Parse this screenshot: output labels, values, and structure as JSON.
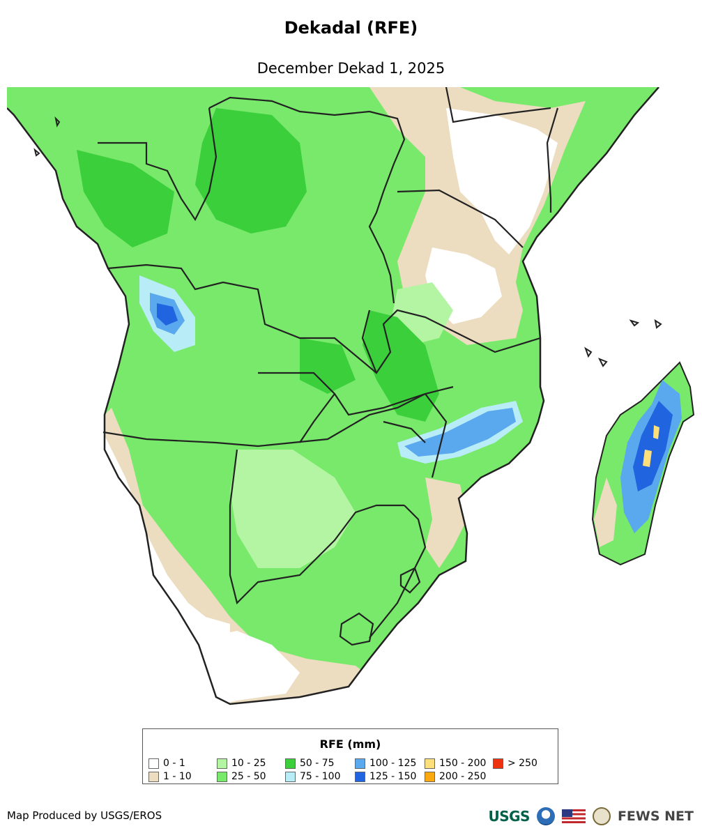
{
  "title": "Dekadal (RFE)",
  "subtitle": "December Dekad 1, 2025",
  "legend": {
    "title": "RFE (mm)",
    "items": [
      {
        "label": "0 - 1",
        "color": "#ffffff"
      },
      {
        "label": "1 - 10",
        "color": "#ecdcc0"
      },
      {
        "label": "10 - 25",
        "color": "#b4f5a4"
      },
      {
        "label": "25 - 50",
        "color": "#78e96a"
      },
      {
        "label": "50 - 75",
        "color": "#3ccf3c"
      },
      {
        "label": "75 - 100",
        "color": "#b8ecf6"
      },
      {
        "label": "100 - 125",
        "color": "#5aa8ee"
      },
      {
        "label": "125 - 150",
        "color": "#2064e0"
      },
      {
        "label": "150 - 200",
        "color": "#fde07c"
      },
      {
        "label": "200 - 250",
        "color": "#f9a810"
      },
      {
        "label": "> 250",
        "color": "#ee3210"
      }
    ]
  },
  "credit": "Map Produced by USGS/EROS",
  "logos": {
    "usgs": "USGS",
    "fews": "FEWS NET"
  }
}
